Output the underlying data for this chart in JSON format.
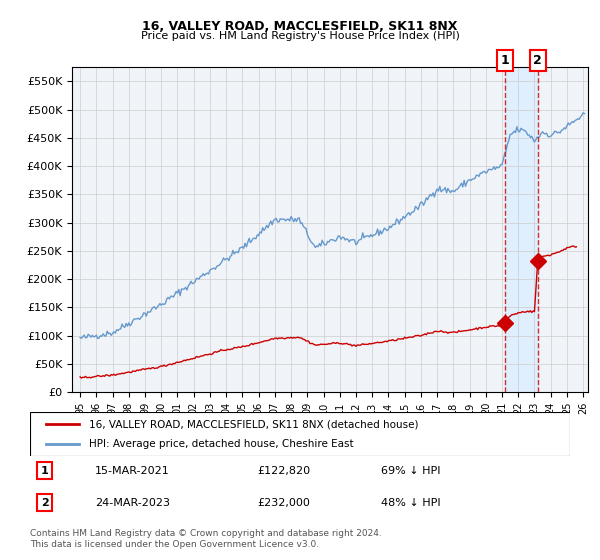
{
  "title1": "16, VALLEY ROAD, MACCLESFIELD, SK11 8NX",
  "title2": "Price paid vs. HM Land Registry's House Price Index (HPI)",
  "legend_label_red": "16, VALLEY ROAD, MACCLESFIELD, SK11 8NX (detached house)",
  "legend_label_blue": "HPI: Average price, detached house, Cheshire East",
  "transaction1_date": "15-MAR-2021",
  "transaction1_price": 122820,
  "transaction1_pct": "69% ↓ HPI",
  "transaction2_date": "24-MAR-2023",
  "transaction2_price": 232000,
  "transaction2_pct": "48% ↓ HPI",
  "footer1": "Contains HM Land Registry data © Crown copyright and database right 2024.",
  "footer2": "This data is licensed under the Open Government Licence v3.0.",
  "red_color": "#cc0000",
  "blue_color": "#6699cc",
  "highlight_color": "#ddeeff",
  "background_color": "#ffffff",
  "grid_color": "#cccccc",
  "ylim": [
    0,
    575000
  ],
  "yticks": [
    0,
    50000,
    100000,
    150000,
    200000,
    250000,
    300000,
    350000,
    400000,
    450000,
    500000,
    550000
  ],
  "transaction1_x": 2021.2,
  "transaction2_x": 2023.2
}
